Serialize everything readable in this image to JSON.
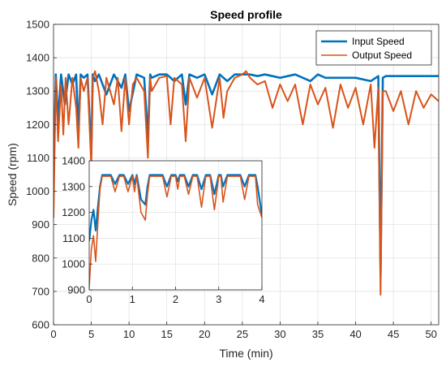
{
  "chart_data": [
    {
      "type": "line",
      "title": "Speed profile",
      "xlabel": "Time (min)",
      "ylabel": "Speed (rpm)",
      "xlim": [
        0,
        51
      ],
      "ylim": [
        600,
        1500
      ],
      "xticks": [
        0,
        5,
        10,
        15,
        20,
        25,
        30,
        35,
        40,
        45,
        50
      ],
      "yticks": [
        600,
        700,
        800,
        900,
        1000,
        1100,
        1200,
        1300,
        1400,
        1500
      ],
      "grid": true,
      "legend_position": "top-right",
      "series": [
        {
          "name": "Input Speed",
          "color": "#0072BD",
          "x": [
            0,
            0.3,
            0.6,
            1,
            1.5,
            2,
            2.5,
            3,
            3.3,
            3.6,
            4,
            4.5,
            5,
            5.2,
            5.5,
            6,
            7,
            8,
            9,
            9.5,
            10,
            11,
            12,
            12.5,
            12.8,
            13,
            14,
            15,
            16,
            17,
            17.5,
            18,
            19,
            20,
            21,
            22,
            23,
            24,
            25,
            26,
            27,
            28,
            30,
            32,
            34,
            35,
            36,
            38,
            40,
            42,
            43,
            43.3,
            43.6,
            44,
            46,
            48,
            50,
            51
          ],
          "values": [
            1040,
            1350,
            1210,
            1350,
            1260,
            1350,
            1320,
            1350,
            1180,
            1350,
            1340,
            1350,
            1110,
            1350,
            1330,
            1350,
            1290,
            1350,
            1310,
            1350,
            1240,
            1350,
            1340,
            1160,
            1350,
            1340,
            1350,
            1350,
            1330,
            1350,
            1260,
            1350,
            1340,
            1350,
            1290,
            1350,
            1330,
            1350,
            1350,
            1350,
            1345,
            1350,
            1340,
            1350,
            1330,
            1350,
            1340,
            1340,
            1340,
            1330,
            1345,
            750,
            1340,
            1345,
            1345,
            1345,
            1345,
            1345
          ]
        },
        {
          "name": "Output Speed",
          "color": "#D95319",
          "x": [
            0,
            0.3,
            0.6,
            1,
            1.3,
            1.6,
            2,
            2.5,
            3,
            3.3,
            3.6,
            4,
            4.5,
            5,
            5.2,
            5.5,
            6,
            6.5,
            7,
            8,
            8.5,
            9,
            9.5,
            10,
            10.5,
            11,
            12,
            12.5,
            12.8,
            13,
            14,
            15,
            15.5,
            16,
            17,
            17.5,
            18,
            19,
            20,
            21,
            22,
            22.5,
            23,
            24,
            25,
            25.5,
            26,
            27,
            28,
            29,
            30,
            31,
            32,
            33,
            34,
            35,
            36,
            37,
            38,
            39,
            40,
            41,
            42,
            42.5,
            43,
            43.3,
            43.6,
            44,
            45,
            46,
            47,
            48,
            49,
            50,
            51
          ],
          "values": [
            920,
            1340,
            1150,
            1320,
            1170,
            1340,
            1200,
            1340,
            1250,
            1130,
            1340,
            1300,
            1340,
            1070,
            1340,
            1360,
            1300,
            1200,
            1340,
            1260,
            1340,
            1180,
            1340,
            1200,
            1320,
            1340,
            1300,
            1100,
            1340,
            1300,
            1340,
            1345,
            1200,
            1340,
            1320,
            1150,
            1340,
            1280,
            1340,
            1190,
            1340,
            1220,
            1300,
            1340,
            1350,
            1360,
            1340,
            1320,
            1330,
            1250,
            1320,
            1270,
            1320,
            1200,
            1320,
            1260,
            1310,
            1190,
            1320,
            1250,
            1310,
            1200,
            1320,
            1130,
            1310,
            690,
            1300,
            1300,
            1240,
            1300,
            1200,
            1300,
            1250,
            1290,
            1270
          ]
        }
      ]
    },
    {
      "type": "line",
      "title": "",
      "xlabel": "",
      "ylabel": "",
      "xlim": [
        0,
        4
      ],
      "ylim": [
        900,
        1400
      ],
      "xticks": [
        0,
        1,
        2,
        3,
        4
      ],
      "yticks": [
        900,
        1000,
        1100,
        1200,
        1300,
        1400
      ],
      "grid": true,
      "series": [
        {
          "name": "Input Speed",
          "color": "#0072BD",
          "x": [
            0,
            0.05,
            0.1,
            0.15,
            0.2,
            0.25,
            0.3,
            0.4,
            0.5,
            0.6,
            0.7,
            0.8,
            0.9,
            1.0,
            1.05,
            1.1,
            1.2,
            1.3,
            1.35,
            1.4,
            1.5,
            1.6,
            1.7,
            1.8,
            1.9,
            2.0,
            2.05,
            2.1,
            2.2,
            2.3,
            2.4,
            2.5,
            2.6,
            2.7,
            2.8,
            2.9,
            3.0,
            3.05,
            3.1,
            3.2,
            3.3,
            3.4,
            3.5,
            3.6,
            3.7,
            3.8,
            3.85,
            3.9,
            4.0
          ],
          "values": [
            1090,
            1170,
            1210,
            1130,
            1220,
            1300,
            1345,
            1345,
            1345,
            1310,
            1345,
            1345,
            1310,
            1345,
            1310,
            1345,
            1250,
            1230,
            1300,
            1345,
            1345,
            1345,
            1345,
            1300,
            1345,
            1345,
            1320,
            1345,
            1345,
            1300,
            1345,
            1345,
            1290,
            1345,
            1345,
            1270,
            1345,
            1345,
            1300,
            1345,
            1345,
            1345,
            1345,
            1300,
            1345,
            1345,
            1345,
            1300,
            1190
          ]
        },
        {
          "name": "Output Speed",
          "color": "#D95319",
          "x": [
            0,
            0.05,
            0.1,
            0.15,
            0.2,
            0.25,
            0.3,
            0.4,
            0.5,
            0.6,
            0.7,
            0.8,
            0.9,
            1.0,
            1.05,
            1.1,
            1.2,
            1.3,
            1.35,
            1.4,
            1.5,
            1.6,
            1.7,
            1.8,
            1.9,
            2.0,
            2.05,
            2.1,
            2.2,
            2.3,
            2.4,
            2.5,
            2.6,
            2.7,
            2.8,
            2.9,
            3.0,
            3.05,
            3.1,
            3.2,
            3.3,
            3.4,
            3.5,
            3.6,
            3.7,
            3.8,
            3.85,
            3.9,
            4.0
          ],
          "values": [
            910,
            1060,
            1110,
            1010,
            1160,
            1290,
            1340,
            1340,
            1340,
            1280,
            1340,
            1340,
            1280,
            1340,
            1280,
            1340,
            1200,
            1170,
            1270,
            1340,
            1340,
            1340,
            1340,
            1260,
            1340,
            1340,
            1290,
            1340,
            1340,
            1270,
            1340,
            1340,
            1220,
            1340,
            1340,
            1210,
            1340,
            1340,
            1240,
            1340,
            1340,
            1340,
            1340,
            1250,
            1340,
            1340,
            1340,
            1230,
            1180
          ]
        }
      ]
    }
  ]
}
